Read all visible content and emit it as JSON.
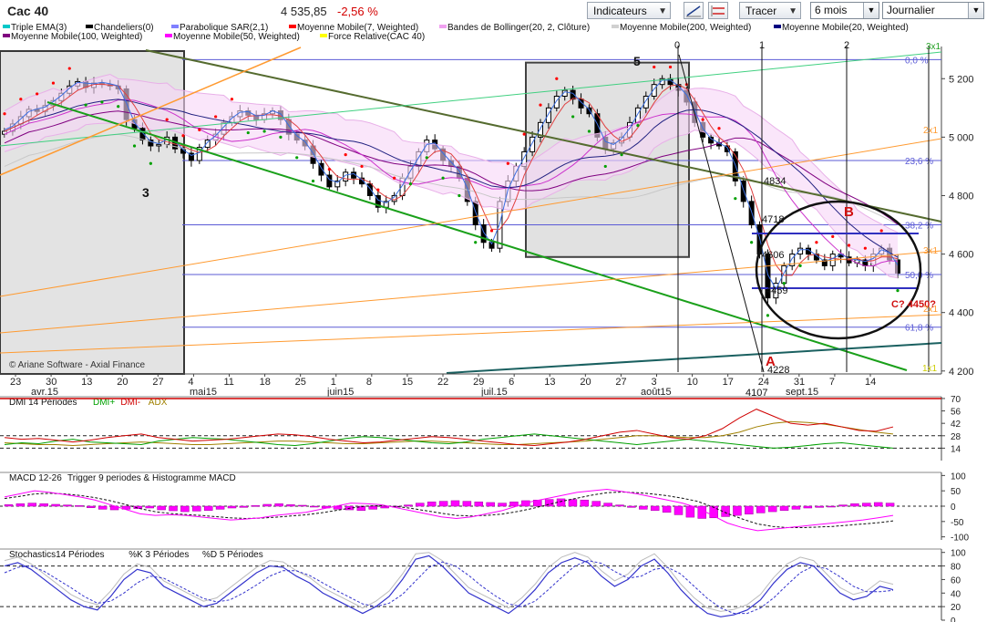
{
  "header": {
    "title": "Cac 40",
    "price": "4 535,85",
    "change": "-2,56 %",
    "indicators_button": "Indicateurs",
    "draw_button": "Tracer",
    "period_select": "6 mois",
    "interval_select": "Journalier"
  },
  "colors": {
    "candle_up": "#ffffff",
    "candle_down": "#000000",
    "ema": "#3a6ee0",
    "sar": "#ff0000",
    "sar_green": "#00a000",
    "ma7": "#e04040",
    "bollinger": "#e8b0e8",
    "ma200": "#c8c8c8",
    "ma20": "#202080",
    "ma100": "#800080",
    "ma50": "#cc33cc",
    "dmi_plus": "#00a000",
    "dmi_minus": "#d00000",
    "adx": "#a08000",
    "macd_hist": "#ff00ff",
    "stoch_k": "#3333cc"
  },
  "legend": [
    {
      "label": "Triple EMA(3)",
      "color": "#00c8c8"
    },
    {
      "label": "Chandeliers(0)",
      "color": "#000000"
    },
    {
      "label": "Parabolique SAR(2,1)",
      "color": "#8080ff"
    },
    {
      "label": "Moyenne Mobile(7, Weighted)",
      "color": "#ff0000"
    },
    {
      "label": "Bandes de Bollinger(20, 2, Clôture)",
      "color": "#f0a0f0"
    },
    {
      "label": "Moyenne Mobile(200, Weighted)",
      "color": "#d0d0d0"
    },
    {
      "label": "Moyenne Mobile(20, Weighted)",
      "color": "#000080"
    },
    {
      "label": "Moyenne Mobile(100, Weighted)",
      "color": "#800080"
    },
    {
      "label": "Moyenne Mobile(50, Weighted)",
      "color": "#ff00ff"
    },
    {
      "label": "Force Relative(CAC 40)",
      "color": "#ffff00"
    }
  ],
  "chart_data": [
    {
      "type": "candlestick",
      "title": "Cac 40",
      "y_ticks": [
        4200,
        4400,
        4600,
        4800,
        5000,
        5200
      ],
      "y_tick_labels": [
        "4 200",
        "4 400",
        "4 600",
        "4 800",
        "5 000",
        "5 200"
      ],
      "ylim": [
        4190,
        5310
      ],
      "x_tick_labels": [
        "23",
        "30",
        "13",
        "20",
        "27",
        "4",
        "11",
        "18",
        "25",
        "1",
        "8",
        "15",
        "22",
        "29",
        "6",
        "13",
        "20",
        "27",
        "3",
        "10",
        "17",
        "24",
        "31",
        "7",
        "14"
      ],
      "month_labels": [
        "avr.15",
        "mai15",
        "juin15",
        "juil.15",
        "août15",
        "sept.15"
      ],
      "copyright": "© Ariane Software - Axial Finance",
      "closes": [
        5020,
        5045,
        5070,
        5095,
        5088,
        5108,
        5125,
        5150,
        5175,
        5190,
        5170,
        5185,
        5180,
        5175,
        5165,
        5060,
        5030,
        4990,
        4970,
        4975,
        5000,
        4960,
        4945,
        4920,
        4965,
        4990,
        5010,
        5050,
        5070,
        5090,
        5075,
        5060,
        5080,
        5090,
        5060,
        5010,
        4990,
        4970,
        4910,
        4870,
        4830,
        4850,
        4880,
        4860,
        4840,
        4800,
        4760,
        4780,
        4800,
        4860,
        4900,
        4950,
        4990,
        4960,
        4920,
        4900,
        4860,
        4780,
        4700,
        4640,
        4620,
        4780,
        4850,
        4900,
        4950,
        5000,
        5050,
        5100,
        5140,
        5160,
        5130,
        5100,
        5080,
        5000,
        4960,
        4980,
        5000,
        5050,
        5100,
        5140,
        5180,
        5200,
        5180,
        5160,
        5120,
        5050,
        5000,
        4980,
        4970,
        4950,
        4850,
        4780,
        4700,
        4600,
        4450,
        4500,
        4560,
        4600,
        4620,
        4600,
        4580,
        4560,
        4600,
        4590,
        4570,
        4580,
        4560,
        4600,
        4620,
        4580,
        4535
      ],
      "annotations": {
        "wave_labels": [
          "3",
          "5",
          "A",
          "B",
          "C? 4450?"
        ],
        "numbers": [
          "0",
          "1",
          "2",
          "4834",
          "4718",
          "4606",
          "4459",
          "4228",
          "4107"
        ],
        "fib_levels": [
          {
            "label": "0,0 %",
            "value": 5265
          },
          {
            "label": "23,6 %",
            "value": 4920
          },
          {
            "label": "38,2 %",
            "value": 4700
          },
          {
            "label": "50,0 %",
            "value": 4530
          },
          {
            "label": "61,8 %",
            "value": 4350
          }
        ],
        "gann_labels": [
          "3x1",
          "2x1",
          "3x1",
          "2x1",
          "1x1"
        ]
      }
    },
    {
      "type": "line",
      "title": "DMI 14 Périodes",
      "series_labels": [
        "DMI+",
        "DMI-",
        "ADX"
      ],
      "y_ticks": [
        14,
        28,
        42,
        56,
        70
      ],
      "ylim": [
        0,
        72
      ],
      "dmi_plus": [
        18,
        20,
        19,
        22,
        24,
        21,
        20,
        19,
        18,
        22,
        24,
        26,
        25,
        24,
        22,
        20,
        18,
        17,
        19,
        22,
        25,
        27,
        26,
        24,
        22,
        20,
        19,
        21,
        24,
        26,
        28,
        30,
        28,
        26,
        24,
        22,
        20,
        18,
        20,
        22,
        24,
        22,
        20,
        18,
        16,
        14,
        15,
        17,
        19,
        20,
        18,
        16,
        14
      ],
      "dmi_minus": [
        26,
        24,
        25,
        23,
        21,
        23,
        26,
        28,
        30,
        26,
        24,
        22,
        23,
        24,
        26,
        28,
        30,
        29,
        27,
        24,
        22,
        20,
        21,
        23,
        25,
        27,
        26,
        24,
        22,
        20,
        18,
        17,
        19,
        21,
        24,
        28,
        32,
        34,
        30,
        26,
        24,
        28,
        36,
        48,
        58,
        50,
        42,
        40,
        42,
        38,
        34,
        33,
        38
      ],
      "adx": [
        20,
        19,
        18,
        18,
        17,
        18,
        19,
        20,
        21,
        20,
        19,
        18,
        18,
        19,
        20,
        21,
        22,
        22,
        21,
        20,
        19,
        19,
        20,
        21,
        22,
        22,
        21,
        20,
        19,
        18,
        18,
        19,
        20,
        21,
        22,
        24,
        26,
        28,
        28,
        27,
        26,
        26,
        28,
        32,
        38,
        42,
        44,
        43,
        41,
        38,
        35,
        32,
        30
      ]
    },
    {
      "type": "bar",
      "title": "MACD 12-26",
      "subtitle": "Trigger 9 periodes & Histogramme MACD",
      "y_ticks": [
        -100,
        -50,
        0,
        50,
        100
      ],
      "ylim": [
        -110,
        110
      ],
      "histogram": [
        5,
        8,
        10,
        8,
        6,
        4,
        2,
        -5,
        -10,
        -12,
        -10,
        -8,
        -6,
        -12,
        -15,
        -18,
        -16,
        -14,
        -10,
        -6,
        -4,
        2,
        6,
        8,
        5,
        3,
        -2,
        -6,
        -10,
        -12,
        -14,
        -10,
        -6,
        -2,
        4,
        10,
        14,
        16,
        18,
        16,
        14,
        12,
        10,
        14,
        18,
        20,
        22,
        24,
        22,
        20,
        16,
        10,
        4,
        -4,
        -10,
        -14,
        -20,
        -28,
        -36,
        -40,
        -38,
        -34,
        -30,
        -26,
        -22,
        -18,
        -14,
        -10,
        -6,
        -4,
        0,
        4,
        8,
        10,
        12,
        10
      ],
      "macd": [
        30,
        40,
        50,
        45,
        38,
        30,
        20,
        5,
        -10,
        -25,
        -30,
        -28,
        -30,
        -35,
        -40,
        -45,
        -42,
        -38,
        -30,
        -25,
        -20,
        -10,
        0,
        10,
        8,
        5,
        -5,
        -15,
        -25,
        -35,
        -40,
        -35,
        -25,
        -15,
        0,
        15,
        25,
        35,
        45,
        50,
        55,
        48,
        40,
        30,
        20,
        10,
        -5,
        -30,
        -55,
        -70,
        -80,
        -75,
        -70,
        -65,
        -60,
        -55,
        -50,
        -45,
        -38,
        -30
      ],
      "signal": [
        25,
        32,
        40,
        42,
        40,
        35,
        28,
        18,
        6,
        -8,
        -18,
        -24,
        -27,
        -30,
        -34,
        -38,
        -40,
        -39,
        -36,
        -32,
        -28,
        -22,
        -14,
        -6,
        0,
        2,
        -1,
        -7,
        -15,
        -23,
        -30,
        -32,
        -30,
        -26,
        -18,
        -8,
        4,
        16,
        26,
        36,
        44,
        46,
        44,
        40,
        34,
        26,
        16,
        -2,
        -24,
        -42,
        -58,
        -66,
        -70,
        -70,
        -68,
        -66,
        -62,
        -58,
        -54,
        -48
      ]
    },
    {
      "type": "line",
      "title": "Stochastics14 Périodes",
      "series_labels": [
        "%K 3 Périodes",
        "%D 5 Périodes"
      ],
      "y_ticks": [
        0,
        20,
        40,
        60,
        80,
        100
      ],
      "ylim": [
        0,
        105
      ],
      "k": [
        80,
        85,
        75,
        60,
        45,
        30,
        20,
        15,
        35,
        60,
        75,
        70,
        50,
        40,
        30,
        20,
        25,
        40,
        55,
        70,
        80,
        78,
        65,
        55,
        40,
        30,
        20,
        10,
        20,
        35,
        60,
        90,
        95,
        80,
        60,
        40,
        30,
        20,
        10,
        25,
        45,
        70,
        85,
        92,
        85,
        65,
        50,
        60,
        80,
        90,
        70,
        45,
        25,
        10,
        5,
        8,
        15,
        30,
        55,
        75,
        85,
        80,
        60,
        40,
        30,
        35,
        50,
        45
      ],
      "d": [
        70,
        78,
        80,
        72,
        60,
        48,
        35,
        25,
        28,
        40,
        55,
        65,
        62,
        52,
        42,
        32,
        27,
        30,
        40,
        52,
        65,
        73,
        73,
        66,
        55,
        44,
        34,
        24,
        20,
        25,
        38,
        58,
        78,
        86,
        80,
        66,
        50,
        36,
        24,
        20,
        28,
        45,
        63,
        80,
        88,
        84,
        72,
        62,
        65,
        75,
        78,
        68,
        50,
        32,
        18,
        10,
        10,
        18,
        33,
        52,
        70,
        80,
        76,
        64,
        50,
        42,
        42,
        44
      ]
    }
  ]
}
